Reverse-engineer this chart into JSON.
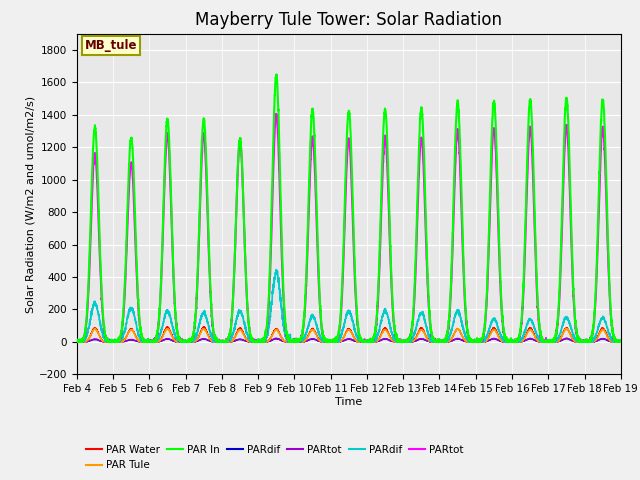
{
  "title": "Mayberry Tule Tower: Solar Radiation",
  "xlabel": "Time",
  "ylabel": "Solar Radiation (W/m2 and umol/m2/s)",
  "ylim": [
    -200,
    1900
  ],
  "yticks": [
    -200,
    0,
    200,
    400,
    600,
    800,
    1000,
    1200,
    1400,
    1600,
    1800
  ],
  "date_labels": [
    "Feb 4",
    "Feb 5",
    "Feb 6",
    "Feb 7",
    "Feb 8",
    "Feb 9",
    "Feb 10",
    "Feb 11",
    "Feb 12",
    "Feb 13",
    "Feb 14",
    "Feb 15",
    "Feb 16",
    "Feb 17",
    "Feb 18",
    "Feb 19"
  ],
  "n_days": 15,
  "points_per_day": 288,
  "background_color": "#e8e8e8",
  "fig_facecolor": "#f0f0f0",
  "legend_box_color": "#ffffcc",
  "legend_box_edge": "#999900",
  "legend_label_color": "#660000",
  "series": {
    "PAR Water": {
      "color": "#ff0000",
      "lw": 1.0
    },
    "PAR Tule": {
      "color": "#ff9900",
      "lw": 1.0
    },
    "PAR In": {
      "color": "#00ff00",
      "lw": 1.5
    },
    "PARdif": {
      "color": "#0000cc",
      "lw": 1.0
    },
    "PARtot": {
      "color": "#9900cc",
      "lw": 1.0
    },
    "PARdif2": {
      "color": "#00cccc",
      "lw": 1.2
    },
    "PARtot2": {
      "color": "#ff00ff",
      "lw": 1.5
    }
  },
  "peak_PAR_In": [
    1320,
    1260,
    1370,
    1370,
    1250,
    1640,
    1430,
    1420,
    1430,
    1440,
    1470,
    1480,
    1490,
    1500,
    1490
  ],
  "peak_PARtot2": [
    1160,
    1100,
    1280,
    1280,
    1230,
    1400,
    1260,
    1250,
    1260,
    1260,
    1300,
    1310,
    1320,
    1330,
    1320
  ],
  "peak_PAR_Water": [
    85,
    80,
    90,
    90,
    85,
    80,
    80,
    80,
    85,
    85,
    80,
    85,
    85,
    85,
    85
  ],
  "peak_PAR_Tule_orange": [
    80,
    75,
    80,
    80,
    75,
    75,
    75,
    75,
    75,
    75,
    80,
    75,
    75,
    80,
    75
  ],
  "peak_PARdif2": [
    240,
    210,
    190,
    180,
    190,
    430,
    160,
    190,
    190,
    180,
    190,
    140,
    140,
    150,
    150
  ],
  "peak_PARdif": [
    15,
    12,
    18,
    18,
    15,
    20,
    18,
    17,
    18,
    18,
    19,
    19,
    19,
    20,
    19
  ],
  "peak_PARtot": [
    18,
    15,
    20,
    20,
    17,
    22,
    20,
    19,
    20,
    20,
    21,
    21,
    21,
    22,
    21
  ],
  "title_fontsize": 12,
  "axis_label_fontsize": 8,
  "tick_fontsize": 7.5
}
